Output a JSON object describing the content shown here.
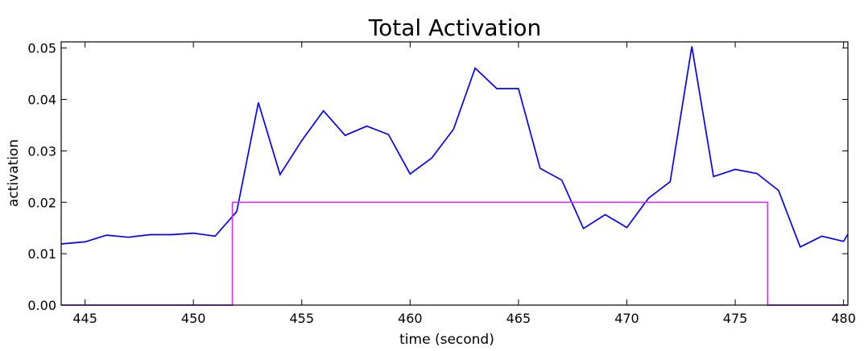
{
  "chart_data": {
    "type": "line",
    "title": "Total Activation",
    "xlabel": "time (second)",
    "ylabel": "activation",
    "xlim": [
      443.9,
      480.2
    ],
    "ylim": [
      0.0,
      0.0512
    ],
    "xticks": [
      445,
      450,
      455,
      460,
      465,
      470,
      475,
      480
    ],
    "xtick_labels": [
      "445",
      "450",
      "455",
      "460",
      "465",
      "470",
      "475",
      "480"
    ],
    "yticks": [
      0.0,
      0.01,
      0.02,
      0.03,
      0.04,
      0.05
    ],
    "ytick_labels": [
      "0.00",
      "0.01",
      "0.02",
      "0.03",
      "0.04",
      "0.05"
    ],
    "grid": false,
    "series": [
      {
        "color": "#0000ff",
        "kind": "line",
        "x": [
          443.9,
          445,
          446,
          447,
          448,
          449,
          450,
          451,
          452,
          453,
          454,
          455,
          456,
          457,
          458,
          459,
          460,
          461,
          462,
          463,
          464,
          465,
          466,
          467,
          468,
          469,
          470,
          471,
          472,
          473,
          474,
          475,
          476,
          477,
          478,
          479,
          480,
          480.2
        ],
        "y": [
          0.0119,
          0.0123,
          0.0136,
          0.0132,
          0.0137,
          0.0137,
          0.014,
          0.0134,
          0.0182,
          0.0394,
          0.0254,
          0.032,
          0.0378,
          0.033,
          0.0348,
          0.0332,
          0.0255,
          0.0286,
          0.0342,
          0.0461,
          0.0421,
          0.0421,
          0.0266,
          0.0243,
          0.0149,
          0.0176,
          0.0151,
          0.0208,
          0.024,
          0.0503,
          0.025,
          0.0264,
          0.0256,
          0.0223,
          0.0113,
          0.0134,
          0.0124,
          0.0138
        ]
      },
      {
        "color": "#cc33ff",
        "kind": "step",
        "x": [
          443.9,
          451.8,
          451.8,
          476.5,
          476.5,
          480.2
        ],
        "y": [
          0.0,
          0.0,
          0.02,
          0.02,
          0.0,
          0.0
        ]
      }
    ]
  }
}
